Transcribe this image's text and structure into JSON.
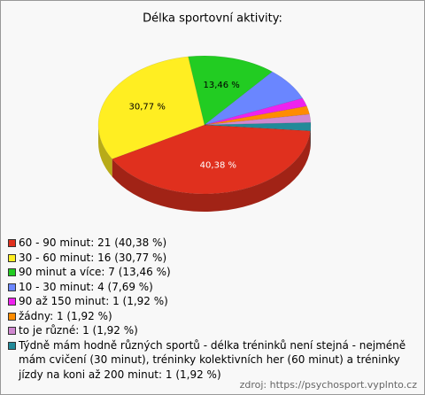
{
  "chart_data": {
    "type": "pie",
    "title": "Délka sportovní aktivity:",
    "labels": [
      "60 - 90 minut: 21 (40,38 %)",
      "30 - 60 minut: 16 (30,77 %)",
      "90 minut a více: 7 (13,46 %)",
      "10 - 30 minut: 4 (7,69 %)",
      "90 až 150 minut: 1 (1,92 %)",
      "žádny: 1 (1,92 %)",
      "to je různé: 1 (1,92 %)",
      "Týdně mám hodně různých sportů - délka tréninků není stejná - nejméně mám cvičení (30 minut), tréninky kolektivních her (60 minut) a tréninky jízdy na koni až 200 minut: 1 (1,92 %)"
    ],
    "values": [
      40.38,
      30.77,
      13.46,
      7.69,
      1.92,
      1.92,
      1.92,
      1.92
    ],
    "value_labels": [
      "40,38 %",
      "30,77 %",
      "13,46 %",
      null,
      null,
      null,
      null,
      null
    ],
    "colors": [
      "#e0301e",
      "#ffee22",
      "#22cc22",
      "#6a86ff",
      "#ee22ee",
      "#ff8c00",
      "#d088d0",
      "#228a99"
    ],
    "source": "zdroj: https://psychosport.vyplnto.cz"
  }
}
